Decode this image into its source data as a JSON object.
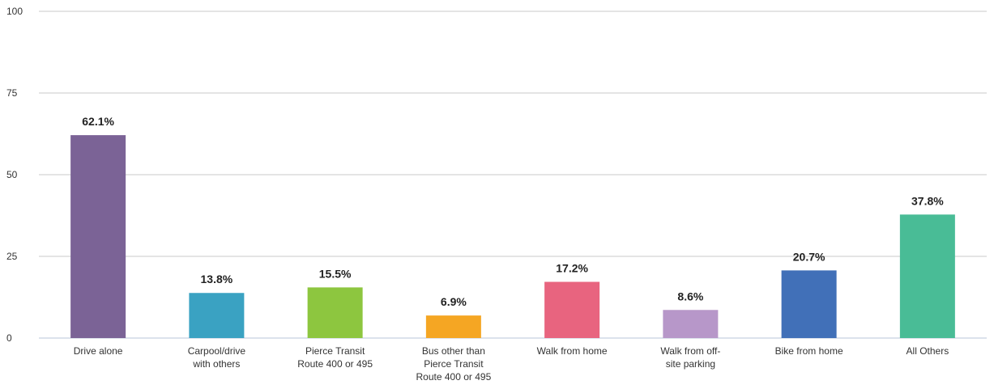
{
  "chart_data": {
    "type": "bar",
    "categories": [
      [
        "Drive alone"
      ],
      [
        "Carpool/drive",
        "with others"
      ],
      [
        "Pierce Transit",
        "Route 400 or 495"
      ],
      [
        "Bus other than",
        "Pierce Transit",
        "Route 400 or 495"
      ],
      [
        "Walk from home"
      ],
      [
        "Walk from off-",
        "site parking"
      ],
      [
        "Bike from home"
      ],
      [
        "All Others"
      ]
    ],
    "values": [
      62.1,
      13.8,
      15.5,
      6.9,
      17.2,
      8.6,
      20.7,
      37.8
    ],
    "data_labels": [
      "62.1%",
      "13.8%",
      "15.5%",
      "6.9%",
      "17.2%",
      "8.6%",
      "20.7%",
      "37.8%"
    ],
    "colors": [
      "#7B6396",
      "#3AA2C2",
      "#8DC63F",
      "#F5A623",
      "#E8647F",
      "#B797C9",
      "#4170B8",
      "#49BC96"
    ],
    "yticks": [
      0,
      25,
      50,
      75,
      100
    ],
    "ylim": [
      0,
      100
    ],
    "grid": true,
    "title": "",
    "xlabel": "",
    "ylabel": ""
  }
}
